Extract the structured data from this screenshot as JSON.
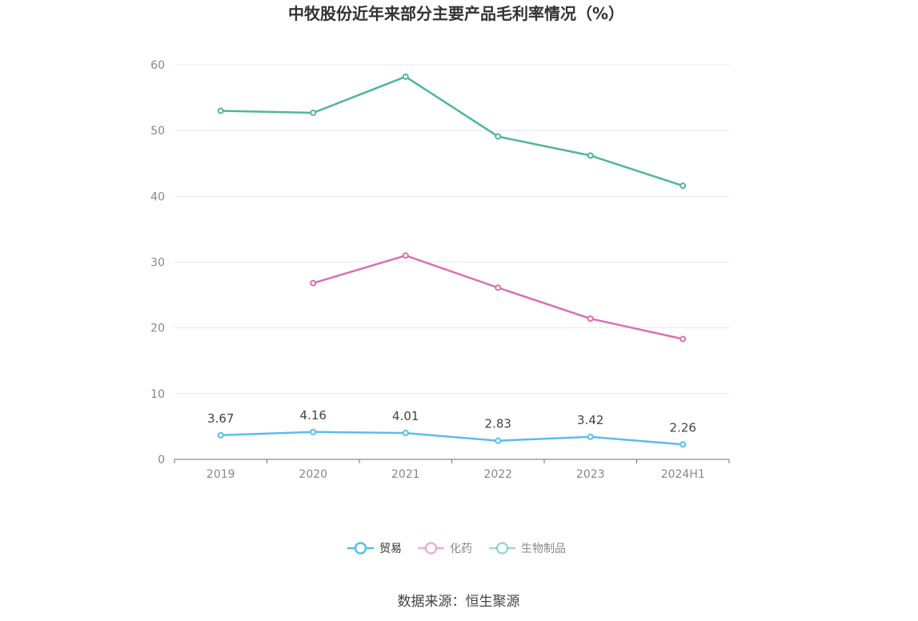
{
  "chart_data": {
    "type": "line",
    "title": "中牧股份近年来部分主要产品毛利率情况（%）",
    "xlabel": "",
    "ylabel": "",
    "categories": [
      "2019",
      "2020",
      "2021",
      "2022",
      "2023",
      "2024H1"
    ],
    "ylim": [
      0,
      60
    ],
    "yticks": [
      "0",
      "10",
      "20",
      "30",
      "40",
      "50",
      "60"
    ],
    "grid": true,
    "legend_position": "bottom-center",
    "series": [
      {
        "name": "贸易",
        "color": "#5bbdee",
        "values": [
          3.67,
          4.16,
          4.01,
          2.83,
          3.42,
          2.26
        ],
        "labels": [
          "3.67",
          "4.16",
          "4.01",
          "2.83",
          "3.42",
          "2.26"
        ],
        "show_labels": true,
        "legend_selected": true
      },
      {
        "name": "化药",
        "color": "#d870b4",
        "values": [
          null,
          26.8,
          31.0,
          26.1,
          21.4,
          18.3
        ],
        "show_labels": false,
        "legend_selected": false
      },
      {
        "name": "生物制品",
        "color": "#4fb69b",
        "values": [
          53.0,
          52.7,
          58.2,
          49.1,
          46.2,
          41.6
        ],
        "show_labels": false,
        "legend_selected": false
      }
    ]
  },
  "source": "数据来源：恒生聚源"
}
